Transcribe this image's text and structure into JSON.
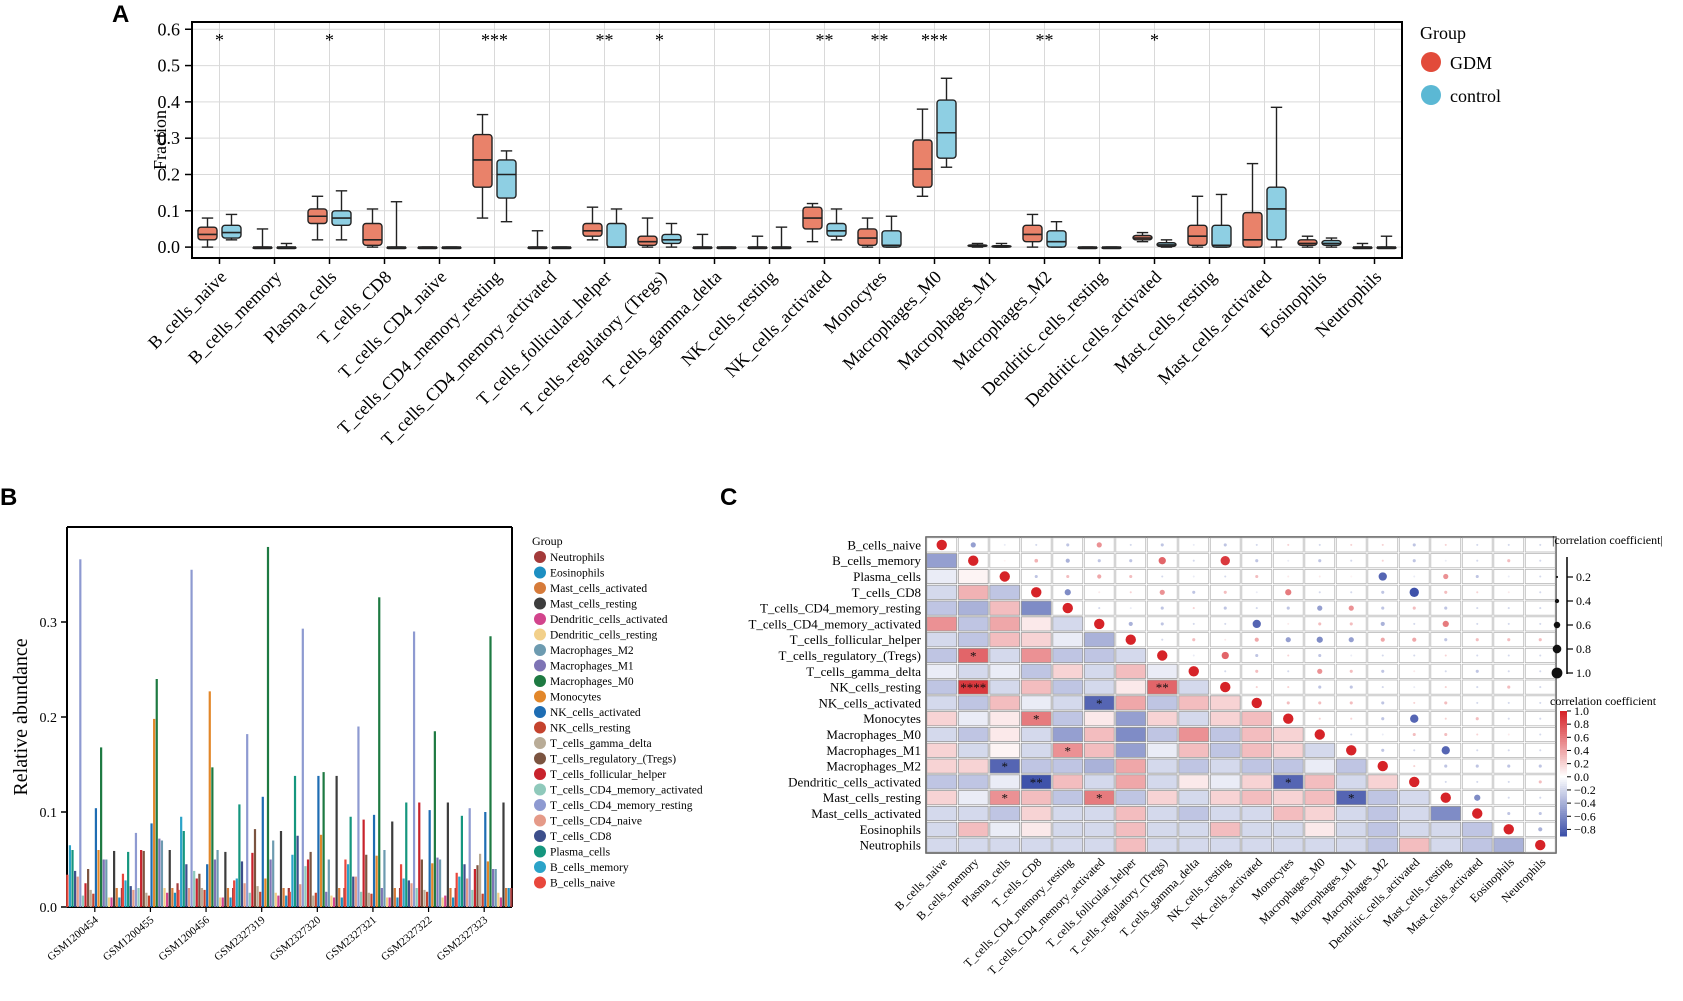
{
  "panel_labels": {
    "a": "A",
    "b": "B",
    "c": "C"
  },
  "colors": {
    "gdm": "#E24B3A",
    "control": "#5BB8D4",
    "box_gdm": "#E9826A",
    "box_control": "#8ECFE3"
  },
  "chart_data": [
    {
      "type": "box",
      "title": "",
      "xlabel": "",
      "ylabel": "Fraction",
      "ylim": [
        -0.03,
        0.62
      ],
      "yticks": [
        0.0,
        0.1,
        0.2,
        0.3,
        0.4,
        0.5,
        0.6
      ],
      "ytick_labels": [
        "0.0",
        "0.1",
        "0.2",
        "0.3",
        "0.4",
        "0.5",
        "0.6"
      ],
      "grid": true,
      "legend_title": "Group",
      "legend_position": "top-right",
      "series_names": [
        "GDM",
        "control"
      ],
      "categories": [
        "B_cells_naive",
        "B_cells_memory",
        "Plasma_cells",
        "T_cells_CD8",
        "T_cells_CD4_naive",
        "T_cells_CD4_memory_resting",
        "T_cells_CD4_memory_activated",
        "T_cells_follicular_helper",
        "T_cells_regulatory_(Tregs)",
        "T_cells_gamma_delta",
        "NK_cells_resting",
        "NK_cells_activated",
        "Monocytes",
        "Macrophages_M0",
        "Macrophages_M1",
        "Macrophages_M2",
        "Dendritic_cells_resting",
        "Dendritic_cells_activated",
        "Mast_cells_resting",
        "Mast_cells_activated",
        "Eosinophils",
        "Neutrophils"
      ],
      "significance": [
        "*",
        "",
        "*",
        "",
        "",
        "***",
        "",
        "**",
        "*",
        "",
        "",
        "**",
        "**",
        "***",
        "",
        "**",
        "",
        "*",
        "",
        "",
        "",
        ""
      ],
      "gdm": [
        [
          0.0,
          0.02,
          0.035,
          0.055,
          0.08
        ],
        [
          0,
          0,
          0,
          0,
          0.05
        ],
        [
          0.02,
          0.065,
          0.085,
          0.105,
          0.14
        ],
        [
          0,
          0.005,
          0.02,
          0.065,
          0.105
        ],
        [
          0,
          0,
          0,
          0,
          0
        ],
        [
          0.08,
          0.165,
          0.24,
          0.31,
          0.365
        ],
        [
          0,
          0,
          0,
          0,
          0.045
        ],
        [
          0.02,
          0.03,
          0.045,
          0.065,
          0.11
        ],
        [
          0,
          0.005,
          0.015,
          0.03,
          0.08
        ],
        [
          0,
          0,
          0,
          0,
          0.035
        ],
        [
          0,
          0,
          0,
          0,
          0.03
        ],
        [
          0.015,
          0.05,
          0.08,
          0.11,
          0.12
        ],
        [
          0,
          0.005,
          0.025,
          0.05,
          0.08
        ],
        [
          0.14,
          0.165,
          0.215,
          0.295,
          0.38
        ],
        [
          0,
          0.002,
          0.004,
          0.006,
          0.01
        ],
        [
          0,
          0.015,
          0.035,
          0.06,
          0.09
        ],
        [
          0,
          0,
          0,
          0,
          0
        ],
        [
          0.015,
          0.02,
          0.025,
          0.032,
          0.04
        ],
        [
          0,
          0.005,
          0.03,
          0.06,
          0.14
        ],
        [
          0,
          0,
          0.02,
          0.095,
          0.23
        ],
        [
          0,
          0.005,
          0.01,
          0.02,
          0.03
        ],
        [
          0,
          0,
          0,
          0,
          0.01
        ]
      ],
      "control": [
        [
          0.02,
          0.025,
          0.04,
          0.06,
          0.09
        ],
        [
          0,
          0,
          0,
          0,
          0.01
        ],
        [
          0.02,
          0.06,
          0.08,
          0.1,
          0.155
        ],
        [
          0,
          0,
          0,
          0,
          0.125
        ],
        [
          0,
          0,
          0,
          0,
          0
        ],
        [
          0.07,
          0.135,
          0.2,
          0.24,
          0.265
        ],
        [
          0,
          0,
          0,
          0,
          0
        ],
        [
          0,
          0,
          0,
          0.065,
          0.105
        ],
        [
          0,
          0.01,
          0.02,
          0.035,
          0.065
        ],
        [
          0,
          0,
          0,
          0,
          0
        ],
        [
          0,
          0,
          0,
          0,
          0.055
        ],
        [
          0.02,
          0.03,
          0.045,
          0.065,
          0.105
        ],
        [
          0,
          0,
          0.005,
          0.045,
          0.085
        ],
        [
          0.22,
          0.245,
          0.315,
          0.405,
          0.465
        ],
        [
          0,
          0,
          0.002,
          0.004,
          0.01
        ],
        [
          0,
          0,
          0.015,
          0.045,
          0.07
        ],
        [
          0,
          0,
          0,
          0,
          0
        ],
        [
          0,
          0.002,
          0.006,
          0.012,
          0.02
        ],
        [
          0,
          0,
          0.005,
          0.06,
          0.145
        ],
        [
          0,
          0.02,
          0.105,
          0.165,
          0.385
        ],
        [
          0,
          0.005,
          0.01,
          0.018,
          0.025
        ],
        [
          0,
          0,
          0,
          0,
          0.03
        ]
      ]
    },
    {
      "type": "bar",
      "title": "",
      "xlabel": "",
      "ylabel": "Relative abundance",
      "ylim": [
        0,
        0.4
      ],
      "yticks": [
        0.0,
        0.1,
        0.2,
        0.3
      ],
      "ytick_labels": [
        "0.0",
        "0.1",
        "0.2",
        "0.3"
      ],
      "legend_title": "Group",
      "legend_position": "right",
      "categories": [
        "GSM1200454",
        "GSM1200455",
        "GSM1200456",
        "GSM2327319",
        "GSM2327320",
        "GSM2327321",
        "GSM2327322",
        "GSM2327323"
      ],
      "series": [
        {
          "name": "B_cells_naive",
          "color": "#E8473C",
          "values": [
            0.034,
            0.035,
            0.018,
            0.028,
            0.016,
            0.05,
            0.045,
            0.036
          ]
        },
        {
          "name": "B_cells_memory",
          "color": "#2BA3C8",
          "values": [
            0.065,
            0.028,
            0.095,
            0.03,
            0.055,
            0.045,
            0.03,
            0.032
          ]
        },
        {
          "name": "Plasma_cells",
          "color": "#15967E",
          "values": [
            0.06,
            0.058,
            0.08,
            0.108,
            0.138,
            0.095,
            0.11,
            0.096
          ]
        },
        {
          "name": "T_cells_CD8",
          "color": "#3D4F8C",
          "values": [
            0.038,
            0.022,
            0.045,
            0.048,
            0.075,
            0.032,
            0.028,
            0.045
          ]
        },
        {
          "name": "T_cells_CD4_naive",
          "color": "#E59A88",
          "values": [
            0.032,
            0.018,
            0.02,
            0.025,
            0.024,
            0.032,
            0.025,
            0.03
          ]
        },
        {
          "name": "T_cells_CD4_memory_resting",
          "color": "#8E9AD1",
          "values": [
            0.366,
            0.078,
            0.355,
            0.182,
            0.293,
            0.19,
            0.29,
            0.104
          ]
        },
        {
          "name": "T_cells_CD4_memory_activated",
          "color": "#8FC9BB",
          "values": [
            0.012,
            0.02,
            0.038,
            0.015,
            0.043,
            0.016,
            0.02,
            0.018
          ]
        },
        {
          "name": "T_cells_follicular_helper",
          "color": "#C8232C",
          "values": [
            0.025,
            0.06,
            0.03,
            0.057,
            0.05,
            0.092,
            0.11,
            0.04
          ]
        },
        {
          "name": "T_cells_regulatory_(Tregs)",
          "color": "#7B5440",
          "values": [
            0.04,
            0.059,
            0.035,
            0.082,
            0.058,
            0.055,
            0.05,
            0.044
          ]
        },
        {
          "name": "T_cells_gamma_delta",
          "color": "#B9AC97",
          "values": [
            0.018,
            0.015,
            0.02,
            0.022,
            0.012,
            0.015,
            0.018,
            0.056
          ]
        },
        {
          "name": "NK_cells_resting",
          "color": "#C4432E",
          "values": [
            0.014,
            0.012,
            0.018,
            0.016,
            0.015,
            0.014,
            0.016,
            0.014
          ]
        },
        {
          "name": "NK_cells_activated",
          "color": "#1E6DB3",
          "values": [
            0.104,
            0.088,
            0.045,
            0.116,
            0.138,
            0.097,
            0.102,
            0.1
          ]
        },
        {
          "name": "Monocytes",
          "color": "#E2872A",
          "values": [
            0.06,
            0.198,
            0.227,
            0.03,
            0.076,
            0.054,
            0.046,
            0.048
          ]
        },
        {
          "name": "Macrophages_M0",
          "color": "#1E7A42",
          "values": [
            0.168,
            0.24,
            0.147,
            0.379,
            0.142,
            0.326,
            0.185,
            0.285
          ]
        },
        {
          "name": "Macrophages_M1",
          "color": "#7E74B5",
          "values": [
            0.05,
            0.072,
            0.05,
            0.05,
            0.016,
            0.02,
            0.052,
            0.04
          ]
        },
        {
          "name": "Macrophages_M2",
          "color": "#6D9BB0",
          "values": [
            0.05,
            0.07,
            0.06,
            0.07,
            0.05,
            0.06,
            0.05,
            0.04
          ]
        },
        {
          "name": "Dendritic_cells_resting",
          "color": "#F2D08A",
          "values": [
            0.01,
            0.02,
            0.01,
            0.015,
            0.012,
            0.01,
            0.01,
            0.015
          ]
        },
        {
          "name": "Dendritic_cells_activated",
          "color": "#D2448C",
          "values": [
            0.01,
            0.015,
            0.01,
            0.012,
            0.01,
            0.01,
            0.012,
            0.01
          ]
        },
        {
          "name": "Mast_cells_resting",
          "color": "#3D3D3D",
          "values": [
            0.059,
            0.06,
            0.058,
            0.08,
            0.138,
            0.09,
            0.11,
            0.11
          ]
        },
        {
          "name": "Mast_cells_activated",
          "color": "#D67B3A",
          "values": [
            0.02,
            0.02,
            0.02,
            0.02,
            0.02,
            0.02,
            0.02,
            0.02
          ]
        },
        {
          "name": "Eosinophils",
          "color": "#1D8FC2",
          "values": [
            0.01,
            0.015,
            0.01,
            0.012,
            0.01,
            0.01,
            0.01,
            0.02
          ]
        },
        {
          "name": "Neutrophils",
          "color": "#A33A3A",
          "values": [
            0.02,
            0.025,
            0.02,
            0.02,
            0.02,
            0.02,
            0.02,
            0.02
          ]
        }
      ]
    },
    {
      "type": "heatmap",
      "title": "",
      "labels": [
        "B_cells_naive",
        "B_cells_memory",
        "Plasma_cells",
        "T_cells_CD8",
        "T_cells_CD4_memory_resting",
        "T_cells_CD4_memory_activated",
        "T_cells_follicular_helper",
        "T_cells_regulatory_(Tregs)",
        "T_cells_gamma_delta",
        "NK_cells_resting",
        "NK_cells_activated",
        "Monocytes",
        "Macrophages_M0",
        "Macrophages_M1",
        "Macrophages_M2",
        "Dendritic_cells_activated",
        "Mast_cells_resting",
        "Mast_cells_activated",
        "Eosinophils",
        "Neutrophils"
      ],
      "lower_matrix": [
        [],
        [
          -0.5
        ],
        [
          -0.1,
          0.05
        ],
        [
          -0.2,
          0.35,
          -0.3
        ],
        [
          -0.3,
          -0.4,
          0.3,
          -0.6
        ],
        [
          0.5,
          -0.3,
          0.4,
          0.1,
          -0.2
        ],
        [
          -0.2,
          -0.3,
          0.3,
          0.2,
          -0.1,
          -0.4
        ],
        [
          -0.3,
          0.7,
          -0.2,
          0.5,
          -0.3,
          -0.3,
          -0.2
        ],
        [
          -0.1,
          -0.2,
          -0.1,
          -0.3,
          0.2,
          -0.2,
          0.3,
          -0.1
        ],
        [
          -0.3,
          0.9,
          -0.2,
          0.3,
          -0.3,
          -0.2,
          0.1,
          0.7,
          -0.2
        ],
        [
          -0.2,
          -0.3,
          0.3,
          -0.1,
          -0.2,
          -0.8,
          0.4,
          -0.3,
          0.3,
          0.2
        ],
        [
          0.2,
          -0.1,
          0.1,
          0.6,
          -0.3,
          0.1,
          -0.5,
          0.2,
          -0.2,
          0.2,
          0.3
        ],
        [
          -0.2,
          -0.3,
          0.1,
          -0.2,
          -0.5,
          0.3,
          -0.6,
          -0.3,
          0.5,
          -0.3,
          0.3,
          0.2
        ],
        [
          0.2,
          -0.2,
          0.05,
          -0.2,
          0.5,
          0.3,
          -0.5,
          -0.1,
          0.3,
          -0.3,
          0.3,
          0.2,
          -0.2
        ],
        [
          0.2,
          0.2,
          -0.8,
          -0.3,
          -0.3,
          -0.4,
          0.4,
          -0.2,
          -0.3,
          -0.2,
          -0.3,
          -0.3,
          -0.1,
          -0.3
        ],
        [
          -0.3,
          -0.3,
          -0.1,
          -0.9,
          0.3,
          -0.2,
          0.4,
          -0.2,
          0.1,
          -0.1,
          0.2,
          -0.8,
          0.3,
          -0.2,
          0.2
        ],
        [
          0.2,
          -0.1,
          0.5,
          0.3,
          -0.3,
          0.6,
          -0.3,
          0.2,
          -0.2,
          0.2,
          0.3,
          0.2,
          0.3,
          -0.8,
          -0.3,
          -0.2
        ],
        [
          -0.2,
          -0.2,
          -0.3,
          0.2,
          -0.2,
          -0.2,
          0.3,
          -0.2,
          -0.3,
          -0.2,
          -0.2,
          0.3,
          0.2,
          -0.2,
          -0.3,
          -0.2,
          -0.6
        ],
        [
          -0.2,
          0.3,
          -0.1,
          0.1,
          -0.2,
          -0.2,
          0.3,
          -0.2,
          -0.2,
          0.3,
          -0.2,
          -0.2,
          0.1,
          -0.2,
          -0.3,
          -0.2,
          -0.2,
          -0.3
        ],
        [
          -0.2,
          -0.2,
          -0.2,
          -0.2,
          -0.2,
          -0.2,
          0.3,
          -0.2,
          -0.2,
          -0.2,
          -0.2,
          -0.2,
          -0.2,
          -0.2,
          -0.3,
          0.3,
          -0.2,
          -0.3,
          -0.4
        ]
      ],
      "stars": [
        {
          "row": 7,
          "col": 1,
          "text": "*"
        },
        {
          "row": 9,
          "col": 1,
          "text": "****"
        },
        {
          "row": 9,
          "col": 7,
          "text": "**"
        },
        {
          "row": 10,
          "col": 5,
          "text": "*"
        },
        {
          "row": 11,
          "col": 3,
          "text": "*"
        },
        {
          "row": 13,
          "col": 4,
          "text": "*"
        },
        {
          "row": 14,
          "col": 2,
          "text": "*"
        },
        {
          "row": 15,
          "col": 3,
          "text": "**"
        },
        {
          "row": 15,
          "col": 11,
          "text": "*"
        },
        {
          "row": 16,
          "col": 2,
          "text": "*"
        },
        {
          "row": 16,
          "col": 5,
          "text": "*"
        },
        {
          "row": 16,
          "col": 13,
          "text": "*"
        }
      ],
      "size_legend_title": "|correlation coefficient|",
      "size_ticks": [
        0.2,
        0.4,
        0.6,
        0.8,
        1.0
      ],
      "size_tick_labels": [
        "0.2",
        "0.4",
        "0.6",
        "0.8",
        "1.0"
      ],
      "color_legend_title": "correlation coefficient",
      "color_ticks": [
        1.0,
        0.8,
        0.6,
        0.4,
        0.2,
        0.0,
        -0.2,
        -0.4,
        -0.6,
        -0.8
      ],
      "color_tick_labels": [
        "1.0",
        "0.8",
        "0.6",
        "0.4",
        "0.2",
        "0.0",
        "−0.2",
        "−0.4",
        "−0.6",
        "−0.8"
      ]
    }
  ]
}
